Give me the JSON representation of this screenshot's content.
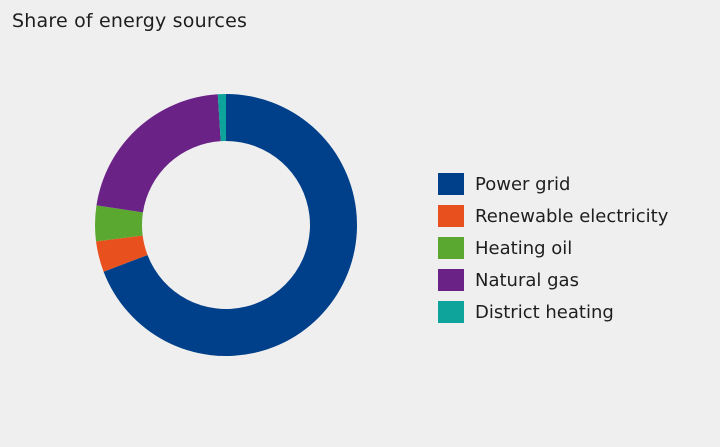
{
  "chart_data": {
    "type": "pie",
    "title": "Share of energy sources",
    "categories": [
      "Power grid",
      "Renewable electricity",
      "Heating oil",
      "Natural gas",
      "District heating"
    ],
    "values": [
      69.2,
      3.8,
      4.4,
      21.6,
      1.0
    ],
    "colors": [
      "#003f8a",
      "#e8501e",
      "#5ba831",
      "#6a2287",
      "#0ea39b"
    ],
    "legend_position": "right",
    "donut": true
  }
}
